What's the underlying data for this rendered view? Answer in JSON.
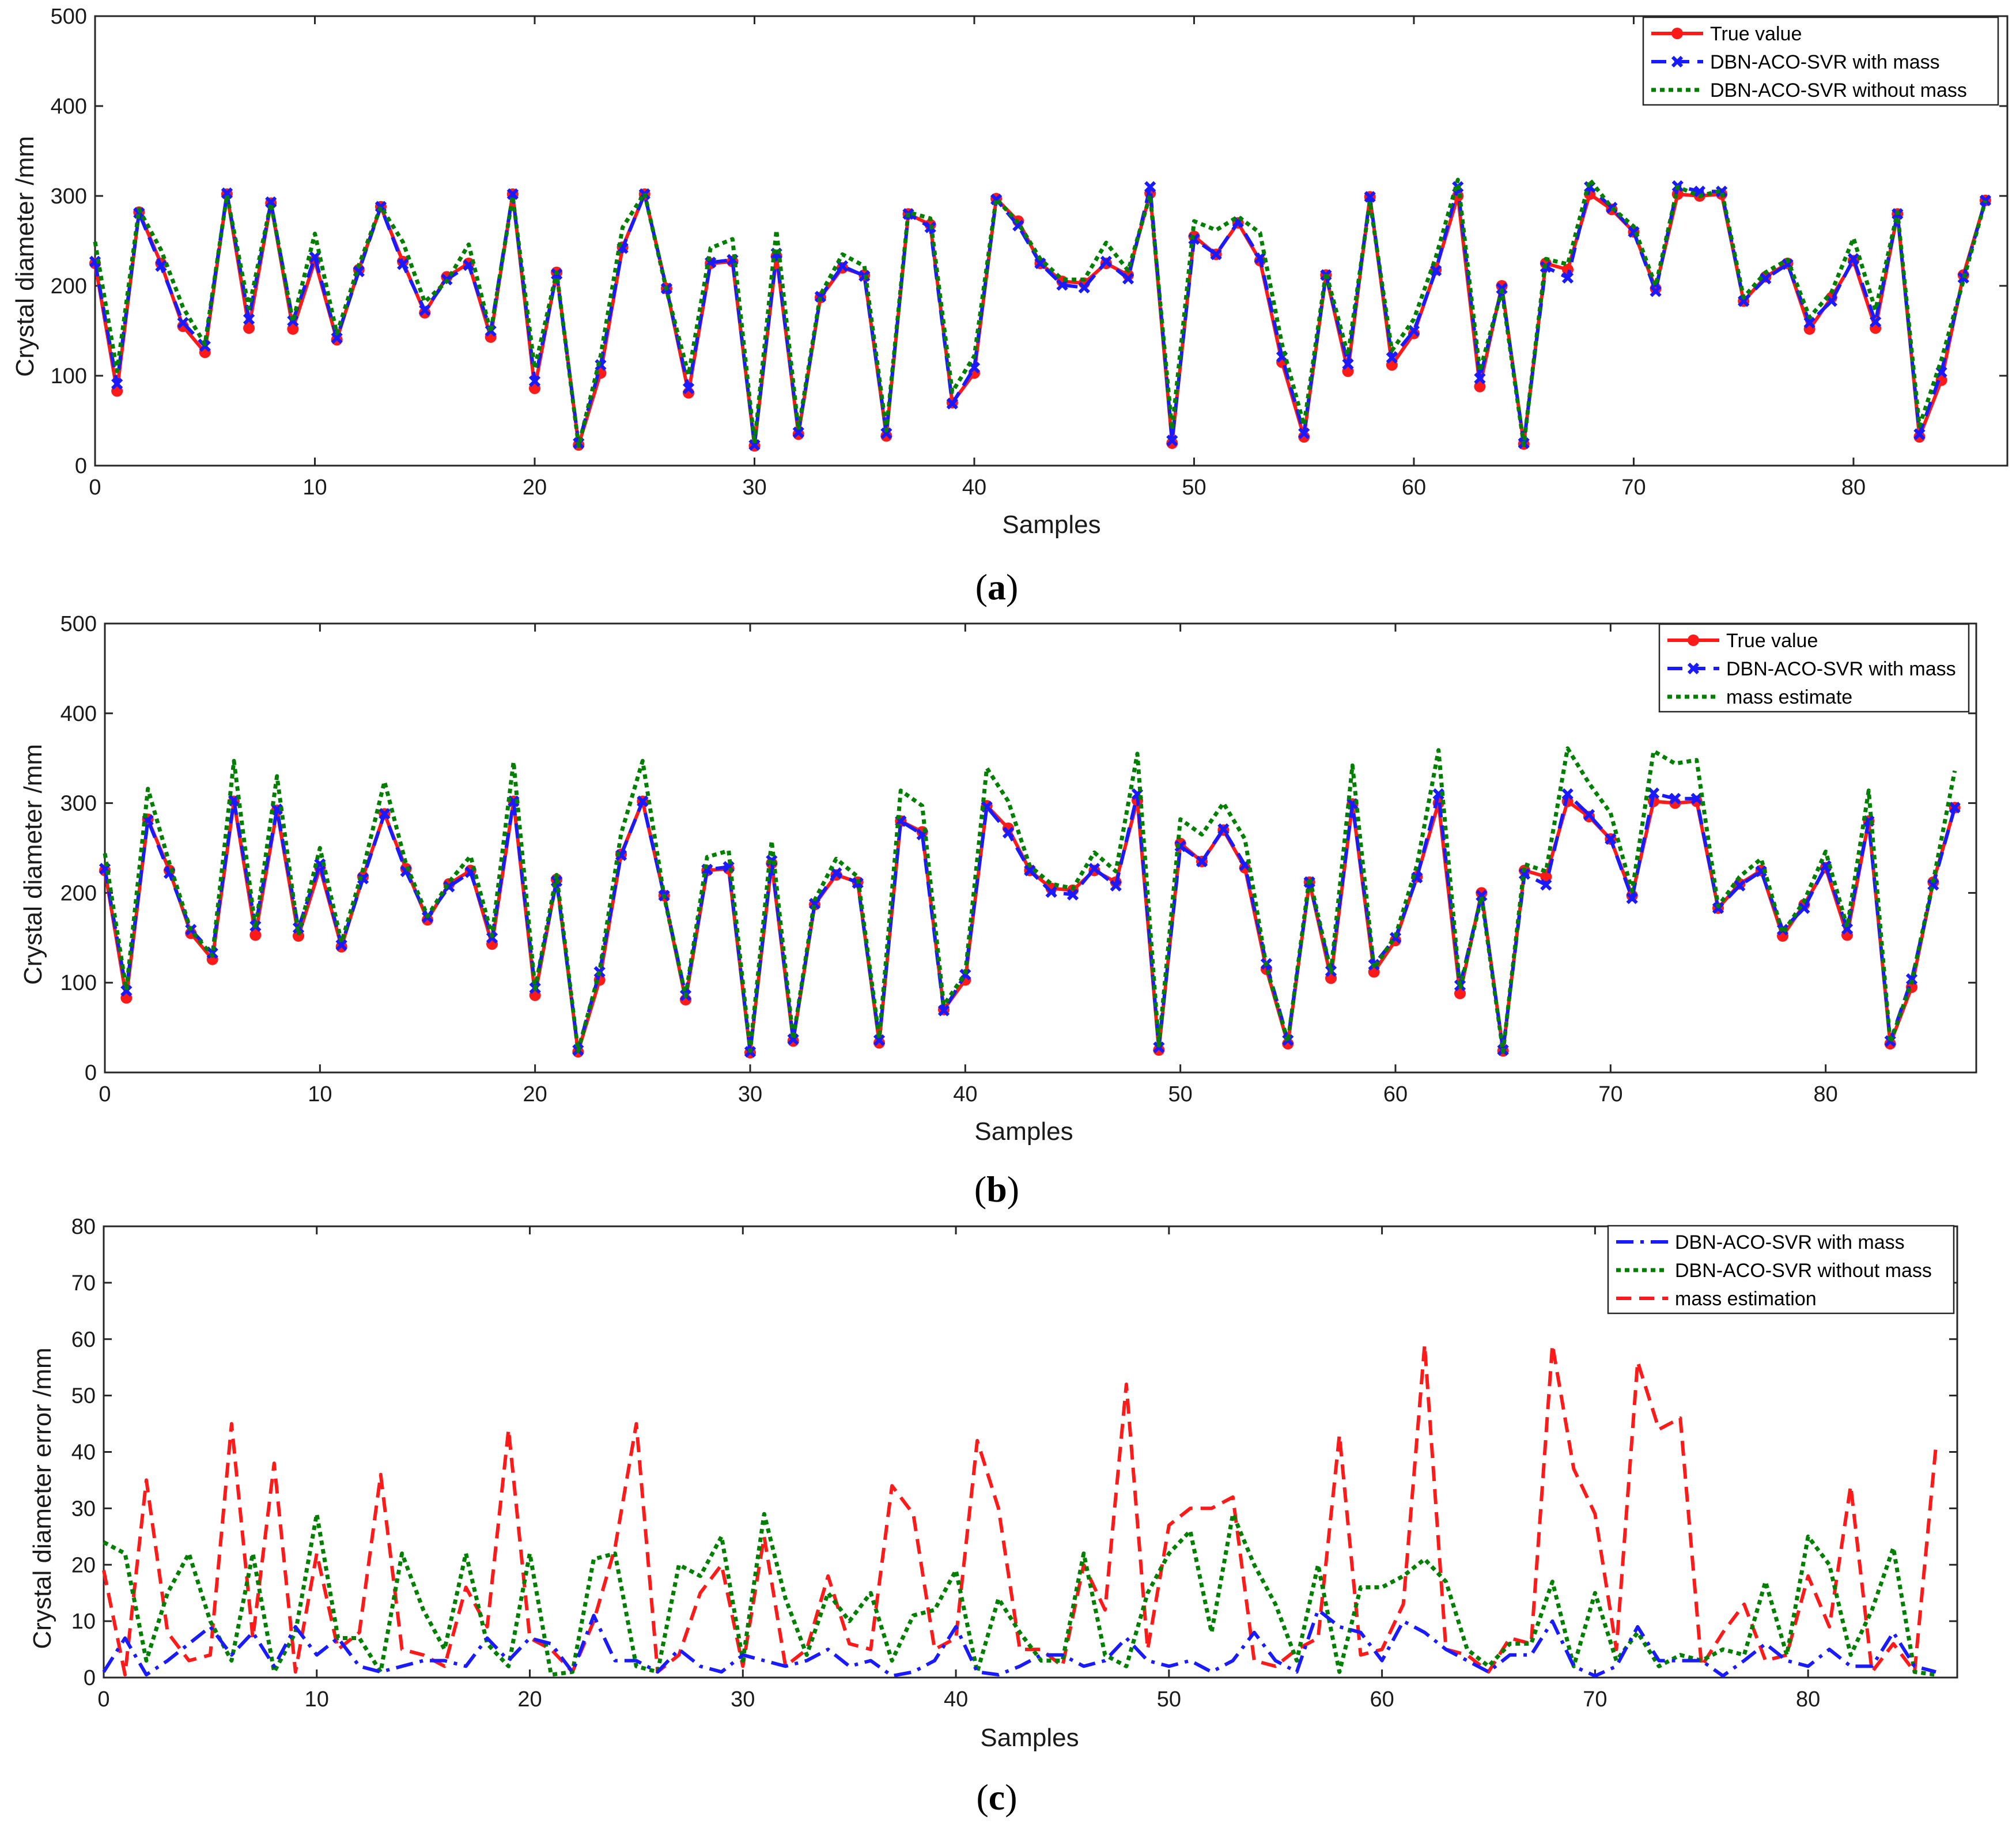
{
  "figure": {
    "captions": [
      "a",
      "b",
      "c"
    ]
  },
  "colors": {
    "true_value": "#ff1a1a",
    "with_mass": "#1a1aff",
    "without_mass": "#007f00",
    "mass_estimate": "#007f00",
    "mass_estimation_error": "#ff1a1a",
    "axis": "#262626"
  },
  "chart_data": [
    {
      "id": "a",
      "type": "line",
      "xlabel": "Samples",
      "ylabel": "Crystal diameter /mm",
      "xlim": [
        0,
        87
      ],
      "ylim": [
        0,
        500
      ],
      "xticks": [
        0,
        10,
        20,
        30,
        40,
        50,
        60,
        70,
        80
      ],
      "yticks": [
        0,
        100,
        200,
        300,
        400,
        500
      ],
      "legend_position": "top-right",
      "series": [
        {
          "name": "True value",
          "color": "#ff1a1a",
          "style": "solid-circle",
          "values": [
            225,
            83,
            282,
            225,
            155,
            126,
            302,
            153,
            292,
            152,
            228,
            140,
            218,
            288,
            227,
            170,
            210,
            225,
            143,
            302,
            86,
            215,
            23,
            103,
            243,
            302,
            197,
            81,
            225,
            227,
            22,
            233,
            35,
            187,
            220,
            212,
            33,
            280,
            268,
            70,
            103,
            297,
            272,
            225,
            205,
            203,
            225,
            212,
            303,
            25,
            255,
            235,
            270,
            228,
            115,
            32,
            212,
            105,
            299,
            112,
            147,
            218,
            300,
            88,
            200,
            24,
            225,
            218,
            302,
            285,
            260,
            197,
            302,
            300,
            302,
            183,
            210,
            225,
            152,
            187,
            228,
            153,
            280,
            32,
            95,
            212,
            295
          ]
        },
        {
          "name": "DBN-ACO-SVR with mass",
          "color": "#1a1aff",
          "style": "dash-x",
          "values": [
            227,
            91,
            281,
            222,
            159,
            133,
            303,
            163,
            293,
            161,
            232,
            142,
            216,
            288,
            224,
            173,
            207,
            223,
            150,
            302,
            94,
            213,
            25,
            112,
            242,
            302,
            197,
            86,
            226,
            229,
            23,
            236,
            37,
            188,
            222,
            211,
            36,
            280,
            265,
            69,
            109,
            296,
            267,
            225,
            201,
            198,
            227,
            208,
            310,
            28,
            252,
            235,
            271,
            231,
            121,
            36,
            212,
            113,
            299,
            120,
            150,
            217,
            310,
            97,
            197,
            25,
            221,
            209,
            310,
            287,
            260,
            194,
            311,
            305,
            305,
            183,
            208,
            224,
            159,
            183,
            230,
            160,
            280,
            35,
            104,
            209,
            295
          ]
        },
        {
          "name": "DBN-ACO-SVR without mass",
          "color": "#007f00",
          "style": "dotted",
          "values": [
            249,
            105,
            285,
            240,
            176,
            135,
            301,
            175,
            292,
            160,
            258,
            147,
            223,
            288,
            249,
            182,
            205,
            246,
            148,
            300,
            108,
            215,
            22,
            122,
            265,
            303,
            195,
            101,
            242,
            252,
            25,
            262,
            40,
            190,
            235,
            222,
            39,
            282,
            275,
            82,
            122,
            297,
            270,
            230,
            207,
            207,
            248,
            217,
            301,
            40,
            272,
            262,
            277,
            259,
            135,
            45,
            215,
            123,
            294,
            128,
            163,
            232,
            318,
            105,
            195,
            23,
            230,
            224,
            318,
            287,
            266,
            200,
            310,
            300,
            306,
            187,
            215,
            229,
            165,
            193,
            253,
            173,
            282,
            44,
            118,
            206,
            295
          ]
        }
      ]
    },
    {
      "id": "b",
      "type": "line",
      "xlabel": "Samples",
      "ylabel": "Crystal diameter /mm",
      "xlim": [
        0,
        87
      ],
      "ylim": [
        0,
        500
      ],
      "xticks": [
        0,
        10,
        20,
        30,
        40,
        50,
        60,
        70,
        80
      ],
      "yticks": [
        0,
        100,
        200,
        300,
        400,
        500
      ],
      "legend_position": "top-right",
      "series": [
        {
          "name": "True value",
          "color": "#ff1a1a",
          "style": "solid-circle",
          "values": [
            225,
            83,
            282,
            225,
            155,
            126,
            302,
            153,
            292,
            152,
            228,
            140,
            218,
            288,
            227,
            170,
            210,
            225,
            143,
            302,
            86,
            215,
            23,
            103,
            243,
            302,
            197,
            81,
            225,
            227,
            22,
            233,
            35,
            187,
            220,
            212,
            33,
            280,
            268,
            70,
            103,
            297,
            272,
            225,
            205,
            203,
            225,
            212,
            303,
            25,
            255,
            235,
            270,
            228,
            115,
            32,
            212,
            105,
            299,
            112,
            147,
            218,
            300,
            88,
            200,
            24,
            225,
            218,
            302,
            285,
            260,
            197,
            302,
            300,
            302,
            183,
            210,
            225,
            152,
            187,
            228,
            153,
            280,
            32,
            95,
            212,
            295
          ]
        },
        {
          "name": "DBN-ACO-SVR with mass",
          "color": "#1a1aff",
          "style": "dash-x",
          "values": [
            227,
            91,
            281,
            222,
            159,
            133,
            303,
            163,
            293,
            161,
            232,
            142,
            216,
            288,
            224,
            173,
            207,
            223,
            150,
            302,
            94,
            213,
            25,
            112,
            242,
            302,
            197,
            86,
            226,
            229,
            23,
            236,
            37,
            188,
            222,
            211,
            36,
            280,
            265,
            69,
            109,
            296,
            267,
            225,
            201,
            198,
            227,
            208,
            310,
            28,
            252,
            235,
            271,
            231,
            121,
            36,
            212,
            113,
            299,
            120,
            150,
            217,
            310,
            97,
            197,
            25,
            221,
            209,
            310,
            287,
            260,
            194,
            311,
            305,
            305,
            183,
            208,
            224,
            159,
            183,
            230,
            160,
            280,
            35,
            104,
            209,
            295
          ]
        },
        {
          "name": "mass estimate",
          "color": "#007f00",
          "style": "dotted",
          "values": [
            244,
            92,
            316,
            233,
            158,
            130,
            347,
            160,
            330,
            153,
            250,
            145,
            226,
            324,
            232,
            174,
            212,
            241,
            152,
            346,
            93,
            220,
            24,
            113,
            266,
            347,
            196,
            85,
            240,
            247,
            24,
            258,
            37,
            192,
            238,
            218,
            38,
            314,
            297,
            75,
            110,
            339,
            302,
            230,
            210,
            205,
            245,
            224,
            355,
            30,
            282,
            265,
            300,
            260,
            118,
            34,
            217,
            112,
            342,
            116,
            152,
            231,
            359,
            93,
            196,
            23,
            232,
            224,
            361,
            322,
            289,
            202,
            358,
            344,
            348,
            185,
            218,
            238,
            155,
            191,
            246,
            162,
            314,
            33,
            101,
            213,
            336
          ]
        }
      ]
    },
    {
      "id": "c",
      "type": "line",
      "xlabel": "Samples",
      "ylabel": "Crystal diameter error  /mm",
      "xlim": [
        0,
        87
      ],
      "ylim": [
        0,
        80
      ],
      "xticks": [
        0,
        10,
        20,
        30,
        40,
        50,
        60,
        70,
        80
      ],
      "yticks": [
        0,
        10,
        20,
        30,
        40,
        50,
        60,
        70,
        80
      ],
      "legend_position": "top-right",
      "series": [
        {
          "name": "DBN-ACO-SVR with mass",
          "color": "#1a1aff",
          "style": "dashdot",
          "values": [
            1,
            7,
            0.5,
            3,
            6,
            9,
            4,
            8,
            2,
            9,
            4,
            7,
            2,
            1,
            2,
            3,
            3,
            2,
            7,
            3,
            7,
            6,
            1,
            11,
            3,
            3,
            1,
            5,
            2,
            1,
            4,
            3,
            2,
            3,
            5,
            2,
            3,
            0.3,
            1,
            3,
            9,
            1,
            0.5,
            2,
            4,
            4,
            2,
            3,
            7,
            3,
            2,
            3,
            1,
            3,
            8,
            3,
            1,
            12,
            9,
            8,
            3,
            10,
            8,
            5,
            3,
            1,
            4,
            4,
            10,
            2,
            0.3,
            2,
            9,
            3,
            3,
            3,
            0.3,
            3,
            6,
            3,
            2,
            5,
            2,
            2,
            8,
            2,
            1
          ]
        },
        {
          "name": "DBN-ACO-SVR without mass",
          "color": "#007f00",
          "style": "dotted",
          "values": [
            24,
            22,
            3,
            15,
            22,
            10,
            3,
            22,
            1,
            8,
            29,
            7,
            7,
            1,
            22,
            12,
            5,
            22,
            6,
            2,
            22,
            0.5,
            1,
            21,
            22,
            2,
            1,
            20,
            18,
            25,
            3,
            29,
            14,
            4,
            15,
            10,
            15,
            3,
            11,
            12,
            19,
            1,
            14,
            8,
            3,
            3,
            22,
            4,
            2,
            15,
            22,
            26,
            8,
            29,
            20,
            13,
            3,
            20,
            1,
            16,
            16,
            18,
            21,
            17,
            5,
            2,
            6,
            6,
            17,
            2,
            15,
            3,
            8,
            2,
            4,
            3,
            5,
            4,
            17,
            4,
            25,
            20,
            4,
            12,
            23,
            1,
            0.5
          ]
        },
        {
          "name": "mass estimation",
          "color": "#ff1a1a",
          "style": "dashed",
          "values": [
            19,
            0.5,
            35,
            8,
            3,
            4,
            45,
            7,
            38,
            1,
            22,
            5,
            8,
            36,
            5,
            4,
            2,
            16,
            9,
            44,
            7,
            5,
            1,
            10,
            23,
            45,
            1,
            4,
            15,
            20,
            2,
            25,
            2,
            5,
            18,
            6,
            5,
            34,
            29,
            5,
            7,
            42,
            30,
            5,
            5,
            2,
            20,
            12,
            52,
            5,
            27,
            30,
            30,
            32,
            3,
            2,
            5,
            7,
            43,
            4,
            5,
            13,
            59,
            5,
            4,
            1,
            7,
            6,
            59,
            37,
            29,
            5,
            56,
            44,
            46,
            2,
            8,
            13,
            3,
            4,
            18,
            9,
            34,
            1,
            6,
            1,
            41
          ]
        }
      ]
    }
  ]
}
